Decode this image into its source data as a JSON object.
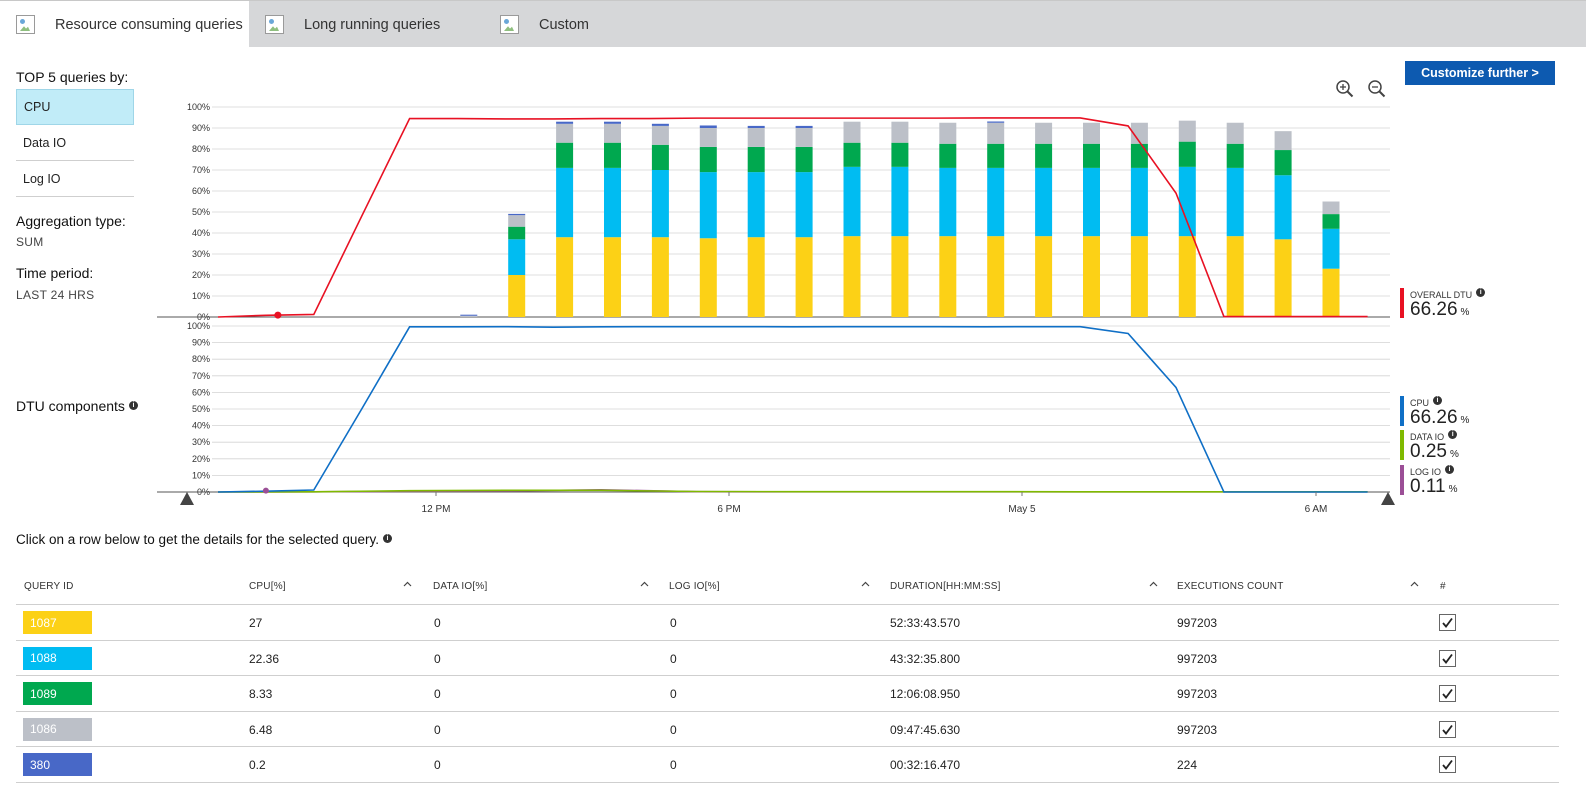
{
  "tabs": [
    {
      "label": "Resource consuming queries",
      "active": true
    },
    {
      "label": "Long running queries",
      "active": false
    },
    {
      "label": "Custom",
      "active": false
    }
  ],
  "sidebar": {
    "top_label": "TOP 5 queries by:",
    "metrics": [
      {
        "label": "CPU",
        "selected": true
      },
      {
        "label": "Data IO",
        "selected": false
      },
      {
        "label": "Log IO",
        "selected": false
      }
    ],
    "aggregation_label": "Aggregation type:",
    "aggregation_value": "SUM",
    "time_label": "Time period:",
    "time_value": "LAST 24 HRS",
    "dtu_label": "DTU components"
  },
  "toolbar": {
    "customize_label": "Customize further >",
    "zoom_in_icon": "zoom-in-icon",
    "zoom_out_icon": "zoom-out-icon"
  },
  "legends": {
    "overall": {
      "name": "OVERALL DTU",
      "value": "66.26",
      "unit": "%",
      "color": "#e81123"
    },
    "cpu": {
      "name": "CPU",
      "value": "66.26",
      "unit": "%",
      "color": "#0f6fc6"
    },
    "data_io": {
      "name": "DATA IO",
      "value": "0.25",
      "unit": "%",
      "color": "#7fba00"
    },
    "log_io": {
      "name": "LOG IO",
      "value": "0.11",
      "unit": "%",
      "color": "#9b4f96"
    }
  },
  "chart_data": [
    {
      "type": "bar",
      "stacked": true,
      "y_ticks": [
        "0%",
        "10%",
        "20%",
        "30%",
        "40%",
        "50%",
        "60%",
        "70%",
        "80%",
        "90%",
        "100%"
      ],
      "ylim": [
        0,
        100
      ],
      "x_ticks": [
        "12 PM",
        "6 PM",
        "May 5",
        "6 AM"
      ],
      "grid": true,
      "series": [
        {
          "query": "1087",
          "color": "#fcd116",
          "values": [
            0,
            0,
            0,
            20,
            38,
            38,
            38,
            37.5,
            38,
            38,
            38.5,
            38.5,
            38.5,
            38.5,
            38.5,
            38.5,
            38.5,
            38.5,
            38.5,
            37,
            23
          ]
        },
        {
          "query": "1088",
          "color": "#00bcf2",
          "values": [
            0,
            0,
            0,
            17,
            33,
            33,
            32,
            31.5,
            31,
            31,
            33,
            33,
            32.5,
            32.5,
            32.5,
            32.5,
            32.5,
            33,
            32.5,
            30.5,
            19
          ]
        },
        {
          "query": "1089",
          "color": "#00a84f",
          "values": [
            0,
            0,
            0,
            6,
            12,
            12,
            12,
            12,
            12,
            12,
            11.5,
            11.5,
            11.5,
            11.5,
            11.5,
            11.5,
            11.5,
            12,
            11.5,
            12,
            7
          ]
        },
        {
          "query": "1086",
          "color": "#bcc0c8",
          "values": [
            0,
            0,
            0.6,
            5.5,
            9,
            9,
            9,
            9,
            9,
            9,
            10,
            10,
            10,
            10,
            10,
            10,
            10,
            10,
            10,
            9,
            6
          ]
        },
        {
          "query": "380",
          "color": "#4868c7",
          "values": [
            0,
            0,
            0.5,
            0.6,
            1,
            1,
            1,
            1.2,
            1,
            1,
            0,
            0,
            0,
            0.6,
            0,
            0,
            0,
            0,
            0,
            0,
            0
          ]
        }
      ],
      "overall_dtu_line": {
        "color": "#e81123",
        "points": [
          [
            0,
            0
          ],
          [
            1,
            0.8
          ],
          [
            2,
            1.2
          ],
          [
            3,
            48
          ],
          [
            4,
            94.5
          ],
          [
            5,
            94.5
          ],
          [
            6,
            94.3
          ],
          [
            7,
            94.3
          ],
          [
            8,
            94.5
          ],
          [
            9,
            94.5
          ],
          [
            10,
            94.7
          ],
          [
            11,
            94.7
          ],
          [
            12,
            94.7
          ],
          [
            13,
            94.7
          ],
          [
            14,
            94.7
          ],
          [
            15,
            94.7
          ],
          [
            16,
            94.8
          ],
          [
            17,
            94.8
          ],
          [
            18,
            94.8
          ],
          [
            19,
            91
          ],
          [
            20,
            59
          ],
          [
            21,
            0.2
          ],
          [
            22,
            0.2
          ],
          [
            23,
            0.2
          ],
          [
            24,
            0.2
          ]
        ]
      }
    },
    {
      "type": "line",
      "y_ticks": [
        "0%",
        "10%",
        "20%",
        "30%",
        "40%",
        "50%",
        "60%",
        "70%",
        "80%",
        "90%",
        "100%"
      ],
      "ylim": [
        0,
        100
      ],
      "grid": true,
      "series": [
        {
          "name": "CPU",
          "color": "#0f6fc6",
          "points": [
            [
              0,
              0
            ],
            [
              1,
              0.5
            ],
            [
              2,
              1.2
            ],
            [
              3,
              50
            ],
            [
              4,
              99.5
            ],
            [
              5,
              99.5
            ],
            [
              6,
              99.6
            ],
            [
              7,
              99.3
            ],
            [
              8,
              99.5
            ],
            [
              9,
              99.6
            ],
            [
              10,
              99.6
            ],
            [
              11,
              99.6
            ],
            [
              12,
              99.5
            ],
            [
              13,
              99.6
            ],
            [
              14,
              99.6
            ],
            [
              15,
              99.6
            ],
            [
              16,
              99.5
            ],
            [
              17,
              99.6
            ],
            [
              18,
              99.6
            ],
            [
              19,
              95.5
            ],
            [
              20,
              63
            ],
            [
              21,
              0
            ],
            [
              22,
              0
            ],
            [
              23,
              0
            ],
            [
              24,
              0
            ]
          ]
        },
        {
          "name": "DATA IO",
          "color": "#7fba00",
          "points": [
            [
              0,
              0
            ],
            [
              2,
              0.1
            ],
            [
              4,
              0.8
            ],
            [
              6,
              1
            ],
            [
              8,
              1
            ],
            [
              10,
              0.3
            ],
            [
              12,
              0.2
            ],
            [
              14,
              0.2
            ],
            [
              16,
              0.2
            ],
            [
              18,
              0.1
            ],
            [
              20,
              0.1
            ],
            [
              24,
              0.1
            ]
          ]
        },
        {
          "name": "LOG IO",
          "color": "#9b4f96",
          "points": [
            [
              0,
              0
            ],
            [
              2,
              0.1
            ],
            [
              4,
              0.4
            ],
            [
              6,
              0.6
            ],
            [
              8,
              1.3
            ],
            [
              10,
              0.2
            ],
            [
              12,
              0.1
            ],
            [
              14,
              0.1
            ],
            [
              16,
              0.1
            ],
            [
              18,
              0.1
            ],
            [
              20,
              0.1
            ],
            [
              24,
              0.1
            ]
          ]
        }
      ]
    }
  ],
  "table": {
    "hint": "Click on a row below to get the details for the selected query.",
    "headers": [
      "QUERY ID",
      "CPU[%]",
      "DATA IO[%]",
      "LOG IO[%]",
      "DURATION[HH:MM:SS]",
      "EXECUTIONS COUNT",
      "#"
    ],
    "rows": [
      {
        "id": "1087",
        "color": "#fcd116",
        "cpu": "27",
        "data_io": "0",
        "log_io": "0",
        "duration": "52:33:43.570",
        "executions": "997203",
        "checked": true
      },
      {
        "id": "1088",
        "color": "#00bcf2",
        "cpu": "22.36",
        "data_io": "0",
        "log_io": "0",
        "duration": "43:32:35.800",
        "executions": "997203",
        "checked": true
      },
      {
        "id": "1089",
        "color": "#00a84f",
        "cpu": "8.33",
        "data_io": "0",
        "log_io": "0",
        "duration": "12:06:08.950",
        "executions": "997203",
        "checked": true
      },
      {
        "id": "1086",
        "color": "#bcc0c8",
        "cpu": "6.48",
        "data_io": "0",
        "log_io": "0",
        "duration": "09:47:45.630",
        "executions": "997203",
        "checked": true
      },
      {
        "id": "380",
        "color": "#4868c7",
        "cpu": "0.2",
        "data_io": "0",
        "log_io": "0",
        "duration": "00:32:16.470",
        "executions": "224",
        "checked": true
      }
    ]
  }
}
